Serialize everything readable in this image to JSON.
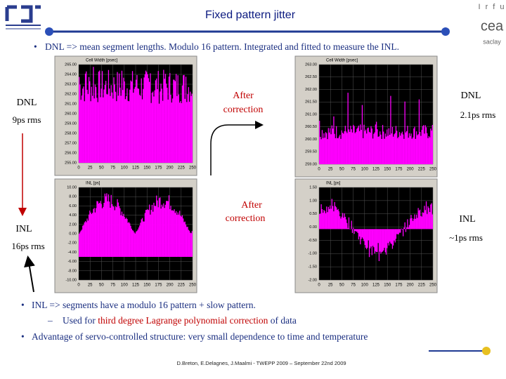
{
  "header": {
    "title": "Fixed pattern jitter",
    "logo_right": [
      "I r f u",
      "cea",
      "saclay"
    ]
  },
  "intro": "DNL => mean segment lengths. Modulo 16 pattern. Integrated and fitted to measure the INL.",
  "plots": [
    {
      "title": "Cell Width [psec]",
      "xticks": [
        "0",
        "25",
        "50",
        "75",
        "100",
        "125",
        "150",
        "175",
        "200",
        "225",
        "250"
      ],
      "yticks": [
        "265.00",
        "264.00",
        "263.00",
        "262.00",
        "261.00",
        "260.00",
        "259.00",
        "258.00",
        "257.00",
        "256.00",
        "255.00"
      ]
    },
    {
      "title": "Cell Width [psec]",
      "xticks": [
        "0",
        "25",
        "50",
        "75",
        "100",
        "125",
        "150",
        "175",
        "200",
        "225",
        "250"
      ],
      "yticks": [
        "263.00",
        "262.50",
        "262.00",
        "261.50",
        "261.00",
        "260.50",
        "260.00",
        "259.50",
        "259.00"
      ]
    },
    {
      "title": "INL [ps]",
      "xticks": [
        "0",
        "25",
        "50",
        "75",
        "100",
        "125",
        "150",
        "175",
        "200",
        "225",
        "250"
      ],
      "yticks": [
        "10.00",
        "8.00",
        "6.00",
        "4.00",
        "2.00",
        "0.00",
        "-2.00",
        "-4.00",
        "-6.00",
        "-8.00",
        "-10.00"
      ]
    },
    {
      "title": "INL [ps]",
      "xticks": [
        "0",
        "25",
        "50",
        "75",
        "100",
        "125",
        "150",
        "175",
        "200",
        "225",
        "250"
      ],
      "yticks": [
        "1.50",
        "1.00",
        "0.50",
        "0.00",
        "-0.50",
        "-1.00",
        "-1.50",
        "-2.00"
      ]
    }
  ],
  "labels": {
    "dnl_left": "DNL",
    "dnl_left_rms": "9ps rms",
    "after_1": [
      "After",
      "correction"
    ],
    "dnl_right": "DNL",
    "dnl_right_rms": "2.1ps rms",
    "after_2": [
      "After",
      "correction"
    ],
    "inl_right": "INL",
    "inl_right_rms": "~1ps rms",
    "inl_left": "INL",
    "inl_left_rms": "16ps rms"
  },
  "bullets": [
    {
      "text": "INL => segments have a modulo 16 pattern + slow pattern.",
      "sub": {
        "before": "Used for ",
        "highlight": "third degree Lagrange polynomial correction",
        "after": " of data"
      }
    },
    {
      "text": "Advantage of servo-controlled structure: very small dependence to time and temperature"
    }
  ],
  "footer": "D.Breton, E.Delagnes, J.Maalmi - TWEPP 2009 – September 22nd 2009"
}
